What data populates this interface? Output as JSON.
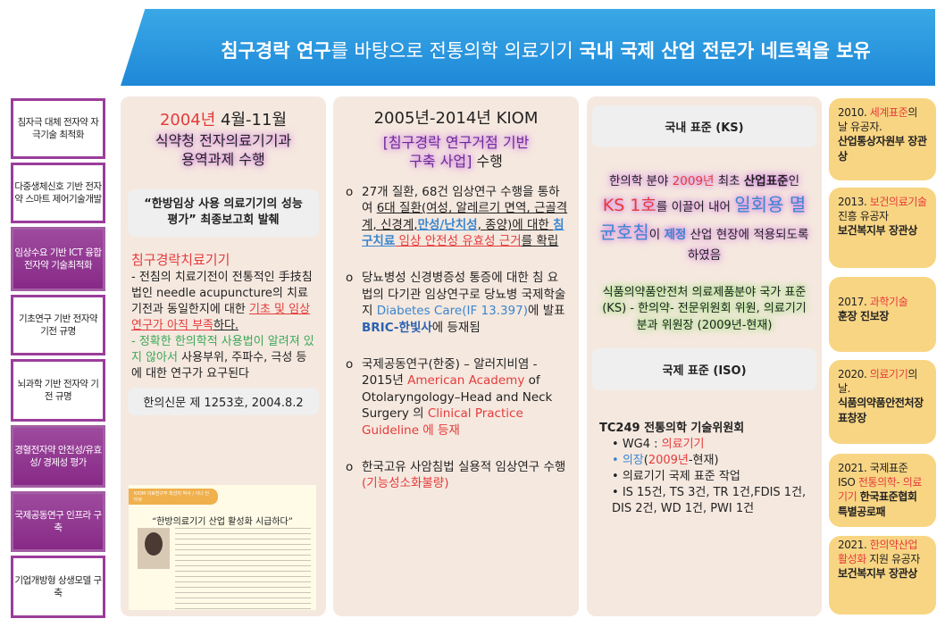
{
  "banner": {
    "p1": "침구경락 연구",
    "p2": "를 바탕으로 전통의학 의료기기 ",
    "p3": "국내 국제 산업 전문가 네트웍을 보유"
  },
  "sidebar": [
    "침자극 대체 전자약 자극기술 최적화",
    "다중생체신호 기반 전자약 스마트 제어기술개발",
    "임상수요 기반 ICT 융합전자약 기술최적화",
    "기초연구 기반 전자약 기전 규명",
    "뇌과학 기반 전자약 기전 규명",
    "경혈전자약 안전성/유효성/ 경제성 평가",
    "국제공동연구 인프라 구축",
    "기업개방형 상생모델 구축"
  ],
  "col1": {
    "year": "2004년",
    "period": " 4월-11월",
    "project": "식약청 전자의료기기과 용역과제 수행",
    "report": "“한방임상 사용 의료기기의 성능평가” 최종보고회 발췌",
    "device": "침구경락치료기기",
    "d1": "- 전침의 치료기전이 전통적인  手技침법인 needle acupuncture의 치료기전과 동일한지에 대한 ",
    "d1r": "기초 및 임상연구가 아직 부족",
    "d1e": "하다.",
    "d2g": " - 정확한 한의학적 사용법이 알려져 있지 않아서",
    "d2": " 사용부위, 주파수, 극성 등에 대한 연구가 요구된다",
    "source": "한의신문 제 1253호, 2004.8.2",
    "news_tag": "KIOM 의료연구부 최선미 박사 / 이나 인터뷰",
    "news_headline": "“한방의료기기 산업 활성화 시급하다”"
  },
  "col2": {
    "title": "2005년-2014년 KIOM",
    "project": "[침구경락 연구거점 기반구축 사업]",
    "project_end": " 수행",
    "b1a": "27개 질환, 68건 임상연구 수행을 통하여 ",
    "b1u": "6대 질환(여성, 알레르기 면역, 근골격계, 신경계,",
    "b1blue": "만성/난치성",
    "b1c": ", 종양)에 대한 ",
    "b1blue2": "침구치료",
    "b1red": " 임상 안전성 유효성 근거",
    "b1d": "를 확립",
    "b2a": "당뇨병성 신경병증성 통증에 대한 침 요법의 다기관 임상연구로 당뇨병 국제학술지 ",
    "b2blue": "Diabetes Care(IF 13.397)",
    "b2b": "에 발표 ",
    "b2bold": "BRIC-한빛사",
    "b2c": "에 등재됨",
    "b3a": "국제공동연구(한중) – 알러지비염 - 2015년 ",
    "b3r": "American Academy",
    "b3b": " of Otolaryngology–Head and Neck Surgery 의 ",
    "b3r2": "Clinical Practice Guideline 에 등재",
    "b4a": "한국고유 사암침법 실용적 임상연구 수행",
    "b4r": "(기능성소화불량)"
  },
  "col3": {
    "ks_header": "국내 표준 (KS)",
    "k1": "한의학 분야 ",
    "k2": "2009년",
    "k3": " 최초 ",
    "k4": "산업표준",
    "k5": "인 ",
    "k6": "KS 1호",
    "k7": "를 이끌어 내어 ",
    "k8": "일회용 멸균호침",
    "k9": "이 ",
    "k10": "제정",
    "k11": " 산업 현장에 적용되도록 하였음",
    "mfds": "식품의약품안전처 의료제품분야 국가 표준(KS) - 한의약- 전문위원회 위원, 의료기기분과 위원장 (2009년-현재)",
    "iso_header": "국제 표준 (ISO)",
    "tc": "TC249 전통의학 기술위원회",
    "wg": "WG4 : ",
    "wgr": "의료기기",
    "chair": "의장",
    "chair_paren_open": "(",
    "chair_year": "2009년",
    "chair_rest": "-현재)",
    "work": "의료기기 국제 표준 작업",
    "counts": "IS 15건, TS 3건, TR 1건,FDIS 1건, DIS 2건, WD 1건, PWI 1건"
  },
  "awards": [
    {
      "y": "2010. ",
      "r": "세계표준",
      "t": "의 날 유공자.",
      "b": "산업통상자원부 장관상"
    },
    {
      "y": "2013. ",
      "r": "보건의료기술",
      "t": "진흥 유공자",
      "b": "보건복지부 장관상"
    },
    {
      "y": "2017. ",
      "r": "과학기술",
      "t": "",
      "b": "훈장 진보장"
    },
    {
      "y": "2020. ",
      "r": "의료기기",
      "t": "의 날.",
      "b": "식품의약품안전처장 표창장"
    },
    {
      "y": "2021. 국제표준 ISO ",
      "r": "전통의학- 의료기기",
      "t": "",
      "b": "한국표준협회 특별공로패"
    },
    {
      "y": "2021. ",
      "r": "한의약산업 활성화",
      "t": " 지원 유공자",
      "b": "보건복지부 장관상"
    }
  ],
  "colors": {
    "banner": "#2a95de",
    "purple": "#8b2e8b",
    "panel": "#f5e8df",
    "award": "#f8d583",
    "red": "#e53b3b",
    "blue": "#3a86cf"
  }
}
